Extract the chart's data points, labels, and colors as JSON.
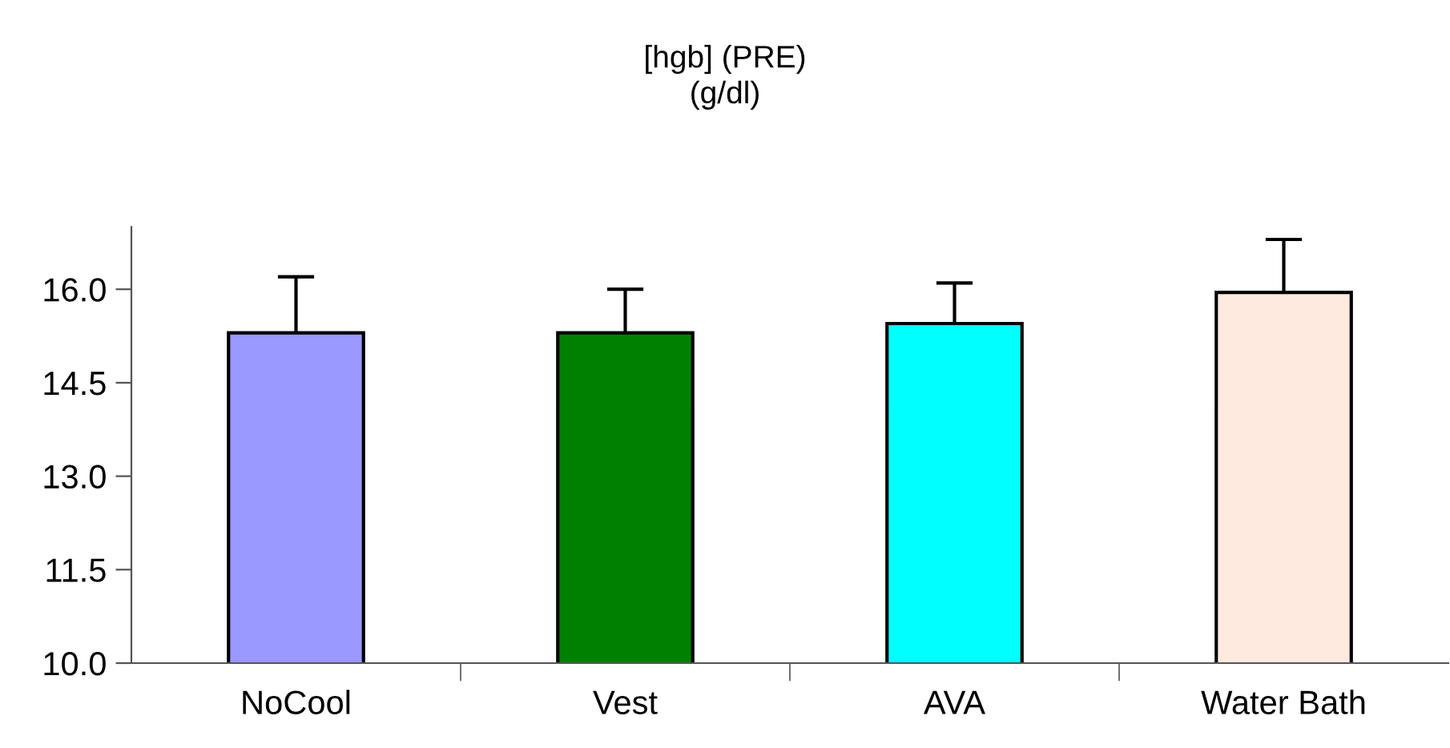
{
  "chart_data": {
    "type": "bar",
    "title": "[hgb] (PRE)\n(g/dl)",
    "categories": [
      "NoCool",
      "Vest",
      "AVA",
      "Water Bath"
    ],
    "values": [
      15.3,
      15.3,
      15.45,
      15.95
    ],
    "colors": [
      "#9999ff",
      "#008000",
      "#00ffff",
      "#ffeadf"
    ],
    "errors": [
      [
        15.3,
        16.2
      ],
      [
        15.3,
        16.0
      ],
      [
        15.45,
        16.1
      ],
      [
        15.95,
        16.8
      ]
    ],
    "ylim": [
      10.0,
      17.0
    ],
    "yticks": [
      {
        "value": 10.0,
        "label": "10.0"
      },
      {
        "value": 11.5,
        "label": "11.5"
      },
      {
        "value": 13.0,
        "label": "13.0"
      },
      {
        "value": 14.5,
        "label": "14.5"
      },
      {
        "value": 16.0,
        "label": "16.0"
      }
    ],
    "grid": false,
    "legend": false
  }
}
